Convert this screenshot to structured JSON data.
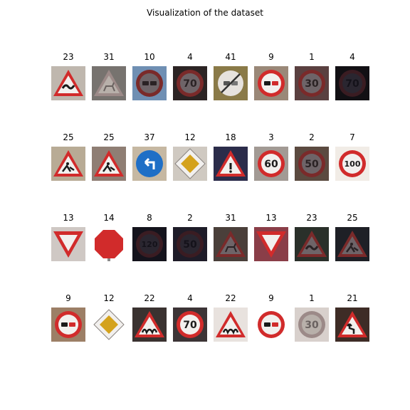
{
  "title": "Visualization of the dataset",
  "rows": [
    [
      {
        "label": "23",
        "kind": "tri",
        "icon": "car-skid",
        "bg": "#bfb7ae",
        "pal": "normal"
      },
      {
        "label": "31",
        "kind": "tri",
        "icon": "deer",
        "bg": "#77736f",
        "pal": "faded"
      },
      {
        "label": "10",
        "kind": "circle",
        "icon": "trucks",
        "bg": "#6f8fb3",
        "pal": "dark"
      },
      {
        "label": "4",
        "kind": "circle",
        "icon": "70",
        "bg": "#2c2424",
        "pal": "dark"
      },
      {
        "label": "41",
        "kind": "end",
        "icon": "cars",
        "bg": "#8a7a48",
        "pal": "normal"
      },
      {
        "label": "9",
        "kind": "circle",
        "icon": "cars",
        "bg": "#9a8878",
        "pal": "normal"
      },
      {
        "label": "1",
        "kind": "circle",
        "icon": "30",
        "bg": "#5a4040",
        "pal": "dark"
      },
      {
        "label": "4",
        "kind": "circle",
        "icon": "70",
        "bg": "#121014",
        "pal": "verydark"
      }
    ],
    [
      {
        "label": "25",
        "kind": "tri",
        "icon": "worker",
        "bg": "#b8ab95",
        "pal": "normal"
      },
      {
        "label": "25",
        "kind": "tri",
        "icon": "worker",
        "bg": "#8f7e74",
        "pal": "normal"
      },
      {
        "label": "37",
        "kind": "blue",
        "icon": "arrow-left",
        "bg": "#c6b8a2",
        "pal": "normal"
      },
      {
        "label": "12",
        "kind": "diamond",
        "icon": "",
        "bg": "#cfc9c1",
        "pal": "normal"
      },
      {
        "label": "18",
        "kind": "tri",
        "icon": "exclaim",
        "bg": "#2b2c4a",
        "pal": "normal"
      },
      {
        "label": "3",
        "kind": "circle",
        "icon": "60",
        "bg": "#a29a94",
        "pal": "normal"
      },
      {
        "label": "2",
        "kind": "circle",
        "icon": "50",
        "bg": "#5b4a40",
        "pal": "dark"
      },
      {
        "label": "7",
        "kind": "circle",
        "icon": "100",
        "bg": "#f1ece6",
        "pal": "normal"
      }
    ],
    [
      {
        "label": "13",
        "kind": "yield",
        "icon": "",
        "bg": "#cfc8c4",
        "pal": "normal"
      },
      {
        "label": "14",
        "kind": "stop",
        "icon": "",
        "bg": "#ffffff",
        "pal": "normal"
      },
      {
        "label": "8",
        "kind": "circle",
        "icon": "120",
        "bg": "#14131c",
        "pal": "verydark"
      },
      {
        "label": "2",
        "kind": "circle",
        "icon": "50",
        "bg": "#1e1c28",
        "pal": "verydark"
      },
      {
        "label": "31",
        "kind": "tri",
        "icon": "deer",
        "bg": "#4a3f3a",
        "pal": "dark"
      },
      {
        "label": "13",
        "kind": "yield",
        "icon": "",
        "bg": "#8a3e48",
        "pal": "normal"
      },
      {
        "label": "23",
        "kind": "tri",
        "icon": "car-skid",
        "bg": "#2a302a",
        "pal": "dark"
      },
      {
        "label": "25",
        "kind": "tri",
        "icon": "worker",
        "bg": "#1e2026",
        "pal": "dark"
      }
    ],
    [
      {
        "label": "9",
        "kind": "circle",
        "icon": "cars",
        "bg": "#9c7f66",
        "pal": "normal"
      },
      {
        "label": "12",
        "kind": "diamond",
        "icon": "",
        "bg": "#ffffff",
        "pal": "normal"
      },
      {
        "label": "22",
        "kind": "tri",
        "icon": "bumpy",
        "bg": "#3a3230",
        "pal": "normal"
      },
      {
        "label": "4",
        "kind": "circle",
        "icon": "70",
        "bg": "#3c3436",
        "pal": "normal"
      },
      {
        "label": "22",
        "kind": "tri",
        "icon": "bumpy",
        "bg": "#e8e2de",
        "pal": "normal"
      },
      {
        "label": "9",
        "kind": "circle",
        "icon": "cars",
        "bg": "#ffffff",
        "pal": "normal"
      },
      {
        "label": "1",
        "kind": "circle",
        "icon": "30",
        "bg": "#d8d0cc",
        "pal": "faded"
      },
      {
        "label": "21",
        "kind": "tri",
        "icon": "double-bend",
        "bg": "#3e2c26",
        "pal": "normal"
      }
    ]
  ]
}
